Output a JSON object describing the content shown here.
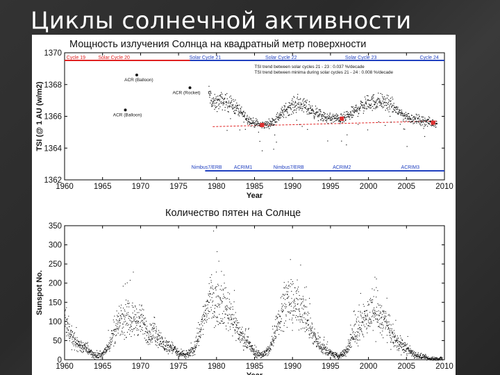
{
  "slide": {
    "title": "Циклы солнечной активности"
  },
  "colors": {
    "background": "#2b2b2b",
    "panel": "#ffffff",
    "red_line": "#e02020",
    "blue_line": "#2040c0",
    "points": "#111111",
    "highlight": "#e03030"
  },
  "chart_data": [
    {
      "type": "scatter",
      "title": "Мощность излучения Солнца на квадратный метр поверхности",
      "xlabel": "Year",
      "ylabel": "TSI (@ 1 AU (w/m2)",
      "xlim": [
        1960,
        2010
      ],
      "ylim": [
        1362,
        1370
      ],
      "xticks": [
        "1960",
        "1965",
        "1970",
        "1975",
        "1980",
        "1985",
        "1990",
        "1995",
        "2000",
        "2005",
        "2010"
      ],
      "yticks": [
        "1362",
        "1364",
        "1366",
        "1368",
        "1370"
      ],
      "top_labels": [
        {
          "text": "Cycle 19",
          "x": 1961.5
        },
        {
          "text": "Solar Cycle 20",
          "x": 1966.5
        },
        {
          "text": "Solar Cycle 21",
          "x": 1978.5
        },
        {
          "text": "Solar Cycle 22",
          "x": 1988.5
        },
        {
          "text": "Solar Cycle 23",
          "x": 1999.0
        },
        {
          "text": "Cycle 24",
          "x": 2008.0
        }
      ],
      "bottom_labels": [
        {
          "text": "Nimbus7/ERB",
          "x": 1978.7
        },
        {
          "text": "ACRIM1",
          "x": 1983.5
        },
        {
          "text": "Nimbus7/ERB",
          "x": 1989.5
        },
        {
          "text": "ACRIM2",
          "x": 1996.5
        },
        {
          "text": "ACRIM3",
          "x": 2005.5
        }
      ],
      "trend_text": [
        "TSI trend between solar cycles 21 - 23 : 0.037 %/decade",
        "TSI trend between minima during solar cycles 21 - 24 : 0.008 %/decade"
      ],
      "early_points": [
        {
          "label": "ACR (Balloon)",
          "x": 1969.5,
          "y": 1368.6
        },
        {
          "label": "ACR (Rocket)",
          "x": 1976.5,
          "y": 1367.8
        },
        {
          "label": "ACR (Balloon)",
          "x": 1968.0,
          "y": 1366.4
        }
      ],
      "minima": [
        {
          "x": 1986.0,
          "y": 1365.45
        },
        {
          "x": 1996.5,
          "y": 1365.85
        },
        {
          "x": 2008.5,
          "y": 1365.6
        }
      ],
      "series_profile": {
        "x": [
          1978.9,
          1979.5,
          1980.5,
          1981.5,
          1982.5,
          1983.5,
          1984.5,
          1985.5,
          1986.5,
          1987.5,
          1988.5,
          1989.5,
          1990.5,
          1991.5,
          1992.5,
          1993.5,
          1994.5,
          1995.5,
          1996.5,
          1997.5,
          1998.5,
          1999.5,
          2000.5,
          2001.5,
          2002.5,
          2003.5,
          2004.5,
          2005.5,
          2006.5,
          2007.5,
          2008.5
        ],
        "y": [
          1367.5,
          1366.8,
          1367.0,
          1366.9,
          1366.6,
          1366.1,
          1365.7,
          1365.5,
          1365.5,
          1365.7,
          1366.2,
          1366.6,
          1366.8,
          1366.7,
          1366.4,
          1366.1,
          1365.9,
          1365.9,
          1365.85,
          1366.1,
          1366.5,
          1366.8,
          1366.9,
          1367.0,
          1366.8,
          1366.5,
          1366.1,
          1365.9,
          1365.8,
          1365.7,
          1365.6
        ]
      }
    },
    {
      "type": "scatter",
      "title": "Количество пятен на Солнце",
      "xlabel": "Year",
      "ylabel": "Sunspot No.",
      "xlim": [
        1960,
        2010
      ],
      "ylim": [
        0,
        350
      ],
      "xticks": [
        "1960",
        "1965",
        "1970",
        "1975",
        "1980",
        "1985",
        "1990",
        "1995",
        "2000",
        "2005",
        "2010"
      ],
      "yticks": [
        "0",
        "50",
        "100",
        "150",
        "200",
        "250",
        "300",
        "350"
      ],
      "series_profile": {
        "x": [
          1960,
          1961,
          1962,
          1963,
          1964,
          1965,
          1966,
          1967,
          1968,
          1969,
          1970,
          1971,
          1972,
          1973,
          1974,
          1975,
          1976,
          1977,
          1978,
          1979,
          1980,
          1981,
          1982,
          1983,
          1984,
          1985,
          1986,
          1987,
          1988,
          1989,
          1990,
          1991,
          1992,
          1993,
          1994,
          1995,
          1996,
          1997,
          1998,
          1999,
          2000,
          2001,
          2002,
          2003,
          2004,
          2005,
          2006,
          2007,
          2008,
          2009
        ],
        "y": [
          112,
          54,
          38,
          28,
          10,
          15,
          47,
          94,
          106,
          106,
          105,
          67,
          69,
          38,
          35,
          16,
          13,
          27,
          93,
          155,
          155,
          141,
          116,
          67,
          46,
          18,
          14,
          29,
          100,
          158,
          142,
          146,
          94,
          55,
          30,
          18,
          9,
          21,
          64,
          93,
          120,
          111,
          104,
          64,
          40,
          30,
          15,
          8,
          3,
          3
        ]
      }
    }
  ]
}
